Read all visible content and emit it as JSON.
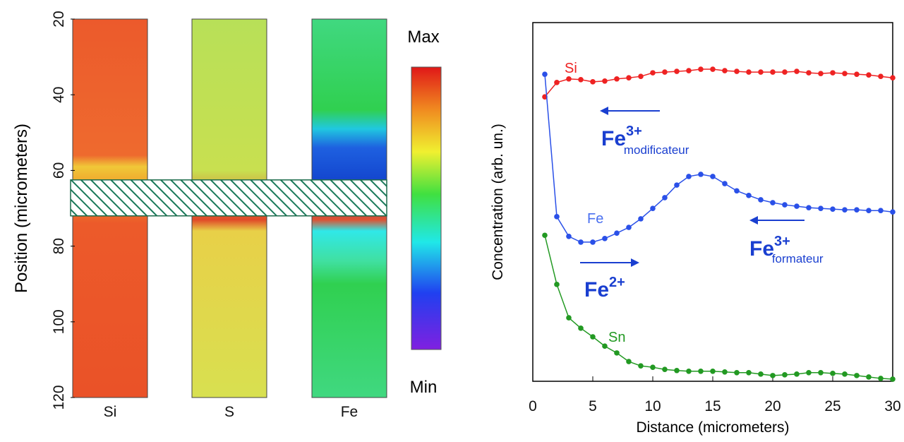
{
  "chart_data": [
    {
      "type": "heatmap-strips",
      "categories": [
        "Si",
        "S",
        "Fe"
      ],
      "ylabel": "Position (micrometers)",
      "ylim": [
        20,
        120
      ],
      "yticks": [
        20,
        40,
        60,
        80,
        100,
        120
      ],
      "colorbar_labels": [
        "Max",
        "Min"
      ],
      "hatched_band": [
        62.5,
        72
      ]
    },
    {
      "type": "line",
      "xlabel": "Distance (micrometers)",
      "ylabel": "Concentration (arb. un.)",
      "xlim": [
        0,
        30
      ],
      "xticks": [
        0,
        5,
        10,
        15,
        20,
        25,
        30
      ],
      "ylim": [
        0,
        100
      ],
      "x": [
        1,
        2,
        3,
        4,
        5,
        6,
        7,
        8,
        9,
        10,
        11,
        12,
        13,
        14,
        15,
        16,
        17,
        18,
        19,
        20,
        21,
        22,
        23,
        24,
        25,
        26,
        27,
        28,
        29,
        30
      ],
      "series": [
        {
          "name": "Si",
          "color": "#ee2222",
          "values": [
            79.3,
            83.3,
            84.3,
            84.1,
            83.5,
            83.7,
            84.3,
            84.6,
            85.0,
            86.0,
            86.2,
            86.4,
            86.6,
            87.0,
            87.0,
            86.6,
            86.4,
            86.2,
            86.2,
            86.2,
            86.2,
            86.4,
            86.0,
            85.8,
            86.0,
            85.8,
            85.6,
            85.4,
            85.0,
            84.6
          ]
        },
        {
          "name": "Fe",
          "color": "#2a50e8",
          "values": [
            85.6,
            45.9,
            40.4,
            38.8,
            38.8,
            39.8,
            41.3,
            42.9,
            45.3,
            48.2,
            51.2,
            54.7,
            57.1,
            57.7,
            57.1,
            55.1,
            53.1,
            51.8,
            50.6,
            49.8,
            49.2,
            48.8,
            48.4,
            48.2,
            48.0,
            47.8,
            47.8,
            47.6,
            47.6,
            47.2
          ]
        },
        {
          "name": "Sn",
          "color": "#229922",
          "values": [
            40.7,
            27.0,
            17.7,
            14.8,
            12.4,
            9.8,
            7.9,
            5.5,
            4.3,
            3.9,
            3.3,
            3.0,
            2.8,
            2.8,
            2.8,
            2.6,
            2.4,
            2.4,
            2.0,
            1.6,
            1.8,
            2.0,
            2.4,
            2.4,
            2.2,
            2.0,
            1.6,
            1.2,
            0.8,
            0.6
          ]
        }
      ],
      "annotations": [
        {
          "text": "Fe",
          "superscript": "3+",
          "subscript": "modificateur"
        },
        {
          "text": "Fe",
          "superscript": "3+",
          "subscript": "formateur"
        },
        {
          "text": "Fe",
          "superscript": "2+"
        }
      ]
    }
  ]
}
